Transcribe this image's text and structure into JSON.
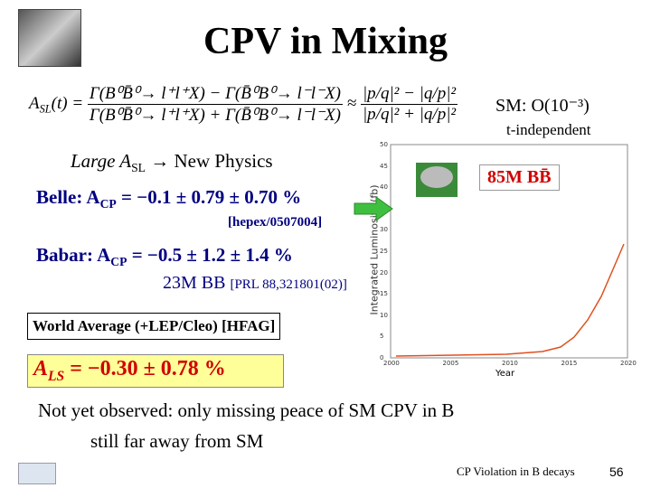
{
  "header": {
    "title": "CPV in Mixing"
  },
  "formula": {
    "lhs": "A",
    "lhs_sub": "SL",
    "lhs_arg": "(t) =",
    "numerator": "Γ(B⁰B̄⁰→ l⁺l⁺X) − Γ(B̄⁰B⁰→ l⁻l⁻X)",
    "denominator": "Γ(B⁰B̄⁰→ l⁺l⁺X) + Γ(B̄⁰B⁰→ l⁻l⁻X)",
    "approx": "≈",
    "ratio_numerator": "|p/q|² − |q/p|²",
    "ratio_denominator": "|p/q|² + |q/p|²"
  },
  "sm": {
    "text": "SM: O(10⁻³)",
    "note": "t-independent"
  },
  "large": {
    "text": "Large A",
    "sub": "SL",
    "rest": " → New Physics"
  },
  "belle": {
    "label": "Belle: A",
    "sub": "CP",
    "value": " = −0.1 ± 0.79 ± 0.70 %",
    "ref": "[hepex/0507004]"
  },
  "babar": {
    "label": "Babar: A",
    "sub": "CP",
    "value": " = −0.5 ± 1.2 ± 1.4 %",
    "sample": "23M BB",
    "ref": "[PRL 88,321801(02)]"
  },
  "badge": "85M BB̄",
  "world_average": "World Average (+LEP/Cleo)  [HFAG]",
  "result": {
    "label": "A",
    "sub": "LS",
    "value": " = −0.30 ± 0.78 %"
  },
  "conclusion": [
    "Not yet observed: only missing peace of SM CPV in B",
    "still far away from SM"
  ],
  "plot": {
    "x_label": "Year",
    "y_label": "Integrated Luminosity (fb)",
    "xticks": [
      "2000",
      "2005",
      "2010",
      "2015",
      "2020"
    ],
    "yticks": [
      "50",
      "45",
      "40",
      "35",
      "30",
      "25",
      "20",
      "15",
      "10",
      "5",
      "0"
    ]
  },
  "footer": {
    "text": "CP Violation in B decays",
    "page": "56"
  }
}
